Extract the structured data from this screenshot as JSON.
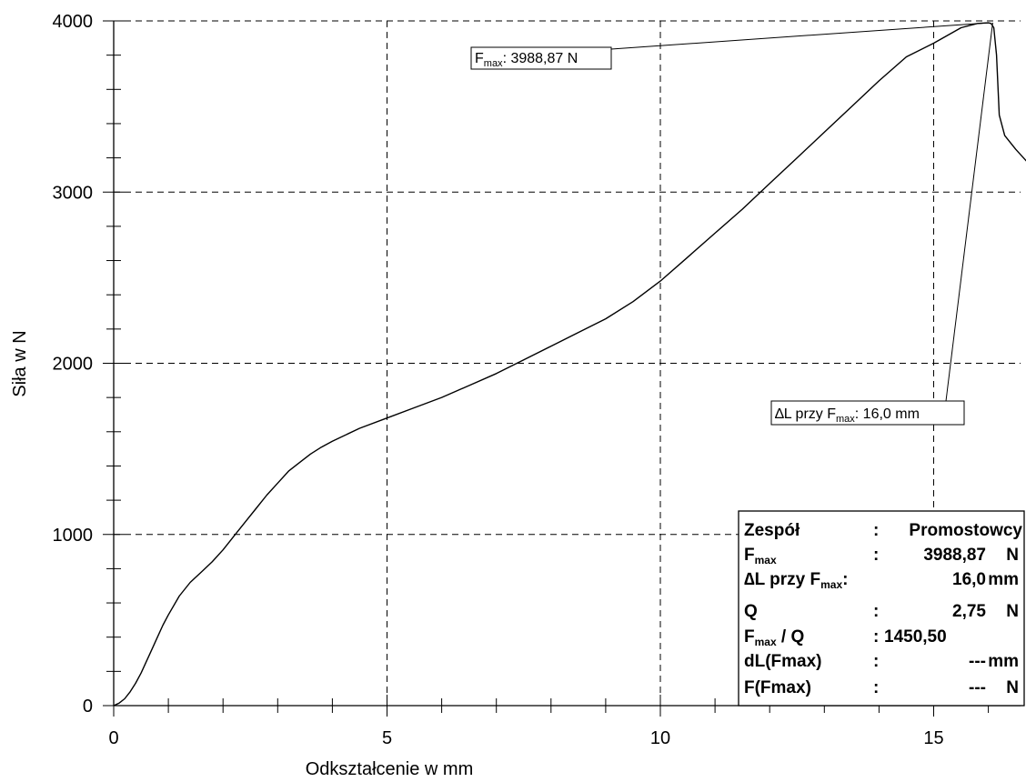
{
  "chart_data": {
    "type": "line",
    "title": "",
    "xlabel": "Odkształcenie w mm",
    "ylabel": "Siła w N",
    "xlim": [
      0,
      16.7
    ],
    "ylim": [
      0,
      4000
    ],
    "x_major_ticks": [
      0,
      5,
      10,
      15
    ],
    "x_tick_labels": [
      "0",
      "5",
      "10",
      "15"
    ],
    "x_minor_step": 1,
    "y_major_ticks": [
      0,
      1000,
      2000,
      3000,
      4000
    ],
    "y_tick_labels": [
      "0",
      "1000",
      "2000",
      "3000",
      "4000"
    ],
    "y_minor_step": 200,
    "grid": "major, dashed",
    "series": [
      {
        "name": "",
        "color": "#000000",
        "x": [
          0,
          0.1,
          0.2,
          0.3,
          0.4,
          0.5,
          0.6,
          0.7,
          0.8,
          0.9,
          1.0,
          1.2,
          1.4,
          1.6,
          1.8,
          2.0,
          2.2,
          2.4,
          2.6,
          2.8,
          3.0,
          3.2,
          3.4,
          3.6,
          3.8,
          4.0,
          4.5,
          5.0,
          5.5,
          6.0,
          6.5,
          7.0,
          7.5,
          8.0,
          8.5,
          9.0,
          9.5,
          10.0,
          10.5,
          11.0,
          11.5,
          12.0,
          12.5,
          13.0,
          13.5,
          14.0,
          14.5,
          15.0,
          15.5,
          15.8,
          16.0,
          16.05,
          16.1,
          16.15,
          16.2,
          16.3,
          16.5,
          16.7
        ],
        "y": [
          0,
          15,
          40,
          80,
          130,
          190,
          260,
          330,
          400,
          470,
          530,
          640,
          720,
          780,
          840,
          910,
          990,
          1070,
          1150,
          1230,
          1300,
          1370,
          1420,
          1470,
          1510,
          1545,
          1620,
          1680,
          1740,
          1800,
          1870,
          1940,
          2020,
          2100,
          2180,
          2260,
          2360,
          2480,
          2620,
          2760,
          2900,
          3050,
          3200,
          3350,
          3500,
          3650,
          3790,
          3870,
          3960,
          3985,
          3988.87,
          3985,
          3960,
          3800,
          3450,
          3330,
          3250,
          3180
        ]
      }
    ],
    "annotations": [
      {
        "id": "fmax",
        "text": [
          {
            "t": "F",
            "sub": false
          },
          {
            "t": "max",
            "sub": true
          },
          {
            "t": ": 3988,87 N",
            "sub": false
          }
        ],
        "point": [
          16.0,
          3988.87
        ]
      },
      {
        "id": "dl",
        "text": [
          {
            "t": "∆",
            "sub": false
          },
          {
            "t": "L przy F",
            "sub": false
          },
          {
            "t": "max",
            "sub": true
          },
          {
            "t": ": 16,0 mm",
            "sub": false
          }
        ],
        "point": [
          16.08,
          3990
        ]
      }
    ],
    "stats_box": {
      "placement": "bottom-right",
      "rows": [
        {
          "label": [
            {
              "t": "Zespół",
              "sub": false
            }
          ],
          "colon": ":",
          "value": "Promostowcy",
          "unit": ""
        },
        {
          "label": [
            {
              "t": "F",
              "sub": false
            },
            {
              "t": "max",
              "sub": true
            }
          ],
          "colon": ":",
          "value": "3988,87",
          "unit": "N"
        },
        {
          "label": [
            {
              "t": "∆",
              "sub": false
            },
            {
              "t": "L przy F",
              "sub": false
            },
            {
              "t": "max",
              "sub": true
            },
            {
              "t": ":",
              "sub": false
            }
          ],
          "colon": "",
          "value": "16,0",
          "unit": "mm"
        },
        {
          "label": [
            {
              "t": "Q",
              "sub": false
            }
          ],
          "colon": ":",
          "value": "2,75",
          "unit": "N"
        },
        {
          "label": [
            {
              "t": "F",
              "sub": false
            },
            {
              "t": "max",
              "sub": true
            },
            {
              "t": " / Q",
              "sub": false
            }
          ],
          "colon": ":",
          "value": "1450,50",
          "unit": ""
        },
        {
          "label": [
            {
              "t": "dL(Fmax)",
              "sub": false
            }
          ],
          "colon": ":",
          "value": "---",
          "unit": "mm"
        },
        {
          "label": [
            {
              "t": "F(Fmax)",
              "sub": false
            }
          ],
          "colon": ":",
          "value": "---",
          "unit": "N"
        }
      ]
    }
  }
}
